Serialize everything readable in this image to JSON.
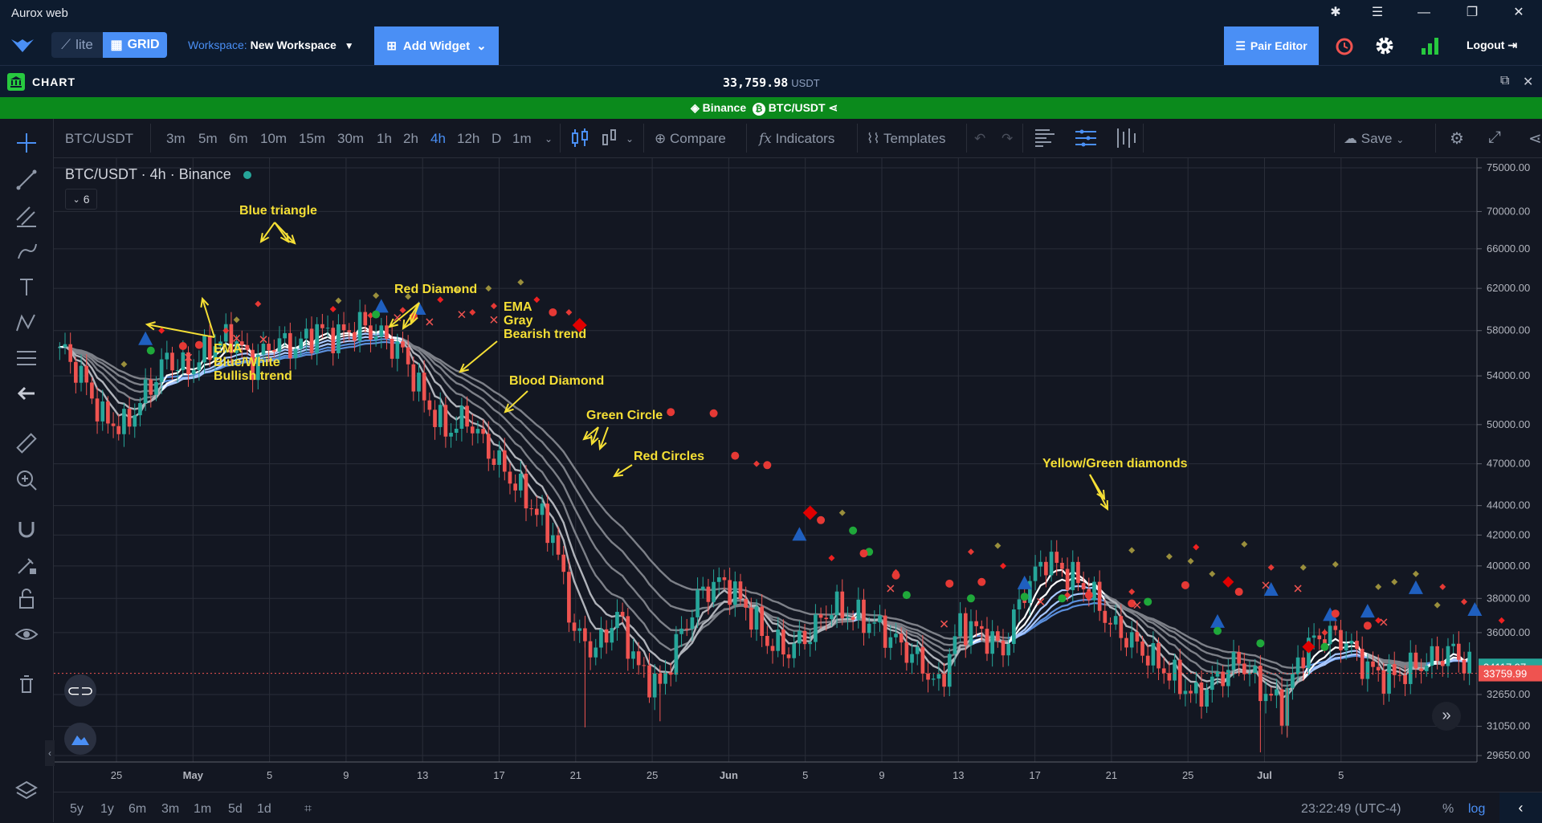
{
  "window": {
    "title": "Aurox web"
  },
  "appbar": {
    "lite": "lite",
    "grid": "GRID",
    "workspace_label": "Workspace:",
    "workspace_name": "New Workspace",
    "add_widget": "Add Widget",
    "pair_editor": "Pair Editor",
    "logout": "Logout"
  },
  "chart_header": {
    "label": "CHART",
    "price": "33,759.98",
    "currency": "USDT",
    "exchange": "Binance",
    "pair": "BTC/USDT"
  },
  "toolbar": {
    "symbol": "BTC/USDT",
    "intervals": [
      "3m",
      "5m",
      "6m",
      "10m",
      "15m",
      "30m",
      "1h",
      "2h",
      "4h",
      "12h",
      "D",
      "1m"
    ],
    "active_interval": "4h",
    "compare": "Compare",
    "indicators": "Indicators",
    "templates": "Templates",
    "save": "Save"
  },
  "legend": {
    "text": "BTC/USDT · 4h · Binance",
    "count": "6"
  },
  "bottom": {
    "ranges": [
      "5y",
      "1y",
      "6m",
      "3m",
      "1m",
      "5d",
      "1d"
    ],
    "time": "23:22:49 (UTC-4)",
    "pct": "%",
    "log": "log"
  },
  "colors": {
    "bg": "#131722",
    "bull": "#26a69a",
    "bear": "#ef5350",
    "ema_bull": "#7fb2ff",
    "ema_bear": "#8a8d94",
    "accent": "#4a8ff5",
    "annotation": "#f5df35"
  },
  "chart_data": {
    "type": "candlestick",
    "title": "BTC/USDT 4h Binance",
    "y_scale": "log",
    "ylim": [
      29650,
      75000
    ],
    "y_ticks": [
      75000,
      70000,
      66000,
      62000,
      58000,
      54000,
      50000,
      47000,
      44000,
      42000,
      40000,
      38000,
      36000,
      32650,
      31050,
      29650
    ],
    "y_tick_labels": [
      "75000.00",
      "70000.00",
      "66000.00",
      "62000.00",
      "58000.00",
      "54000.00",
      "50000.00",
      "47000.00",
      "44000.00",
      "42000.00",
      "40000.00",
      "38000.00",
      "36000.00",
      "32650.00",
      "31050.00",
      "29650.00"
    ],
    "x_ticks": [
      "25",
      "May",
      "5",
      "9",
      "13",
      "17",
      "21",
      "25",
      "Jun",
      "5",
      "9",
      "13",
      "17",
      "21",
      "25",
      "Jul",
      "5"
    ],
    "price_labels": [
      {
        "value": "34117.97",
        "type": "bull"
      },
      {
        "value": "33759.99",
        "type": "bear"
      }
    ],
    "close_path": [
      [
        0,
        56500
      ],
      [
        4,
        54000
      ],
      [
        8,
        50500
      ],
      [
        12,
        49800
      ],
      [
        16,
        52500
      ],
      [
        20,
        55500
      ],
      [
        24,
        54500
      ],
      [
        28,
        56500
      ],
      [
        32,
        57500
      ],
      [
        36,
        55000
      ],
      [
        40,
        57000
      ],
      [
        44,
        56500
      ],
      [
        48,
        58000
      ],
      [
        52,
        57500
      ],
      [
        56,
        58500
      ],
      [
        60,
        57500
      ],
      [
        64,
        56000
      ],
      [
        68,
        52000
      ],
      [
        72,
        49500
      ],
      [
        76,
        50500
      ],
      [
        80,
        48000
      ],
      [
        84,
        46000
      ],
      [
        88,
        44000
      ],
      [
        92,
        42000
      ],
      [
        96,
        36000
      ],
      [
        100,
        35000
      ],
      [
        104,
        37000
      ],
      [
        108,
        34000
      ],
      [
        112,
        33000
      ],
      [
        116,
        36000
      ],
      [
        120,
        38500
      ],
      [
        124,
        39000
      ],
      [
        128,
        37500
      ],
      [
        132,
        35500
      ],
      [
        136,
        35000
      ],
      [
        140,
        36000
      ],
      [
        144,
        37500
      ],
      [
        148,
        37000
      ],
      [
        152,
        36500
      ],
      [
        156,
        35500
      ],
      [
        160,
        34500
      ],
      [
        164,
        33000
      ],
      [
        168,
        36500
      ],
      [
        172,
        36000
      ],
      [
        176,
        35000
      ],
      [
        180,
        38500
      ],
      [
        184,
        40500
      ],
      [
        188,
        39500
      ],
      [
        192,
        38500
      ],
      [
        196,
        36500
      ],
      [
        200,
        35500
      ],
      [
        204,
        34500
      ],
      [
        208,
        33500
      ],
      [
        212,
        32500
      ],
      [
        216,
        33500
      ],
      [
        220,
        34500
      ],
      [
        224,
        33000
      ],
      [
        228,
        32000
      ],
      [
        232,
        35000
      ],
      [
        236,
        36000
      ],
      [
        240,
        35500
      ],
      [
        244,
        34000
      ],
      [
        248,
        33500
      ],
      [
        252,
        34000
      ],
      [
        256,
        34500
      ],
      [
        260,
        35000
      ],
      [
        263,
        34118
      ]
    ],
    "series": [
      {
        "name": "EMA",
        "role": "trend ribbon"
      }
    ],
    "annotations": [
      "Blue triangle",
      "Red Diamond",
      "EMA",
      "Gray",
      "Bearish trend",
      "EMA",
      "Blue/White",
      "Bullish trend",
      "Blood Diamond",
      "Green Circle",
      "Red Circles",
      "Yellow/Green diamonds"
    ]
  }
}
